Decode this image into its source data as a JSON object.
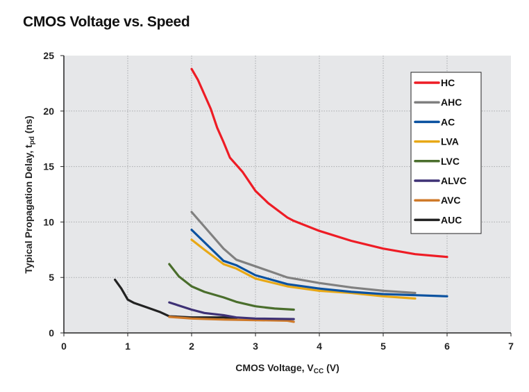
{
  "chart_data": {
    "type": "line",
    "title": "CMOS Voltage vs. Speed",
    "xlabel": "CMOS Voltage, V",
    "xlabel_sub": "CC",
    "xlabel_unit": " (V)",
    "ylabel": "Typical Propagation Delay, t",
    "ylabel_sub": "pd",
    "ylabel_unit": " (ns)",
    "xlim": [
      0,
      7
    ],
    "ylim": [
      0,
      25
    ],
    "xticks": [
      0,
      1,
      2,
      3,
      4,
      5,
      6,
      7
    ],
    "yticks": [
      0,
      5,
      10,
      15,
      20,
      25
    ],
    "grid": true,
    "legend_position": "top-right",
    "series": [
      {
        "name": "HC",
        "color": "#ee1c25",
        "points": [
          [
            2,
            23.8
          ],
          [
            2.1,
            22.8
          ],
          [
            2.2,
            21.5
          ],
          [
            2.3,
            20.2
          ],
          [
            2.4,
            18.5
          ],
          [
            2.5,
            17.2
          ],
          [
            2.6,
            15.8
          ],
          [
            2.8,
            14.5
          ],
          [
            3,
            12.8
          ],
          [
            3.2,
            11.7
          ],
          [
            3.5,
            10.4
          ],
          [
            3.6,
            10.1
          ],
          [
            4,
            9.2
          ],
          [
            4.5,
            8.3
          ],
          [
            5,
            7.6
          ],
          [
            5.5,
            7.1
          ],
          [
            6,
            6.85
          ]
        ]
      },
      {
        "name": "AHC",
        "color": "#808080",
        "points": [
          [
            2,
            10.9
          ],
          [
            2.5,
            7.6
          ],
          [
            2.7,
            6.6
          ],
          [
            3,
            6.0
          ],
          [
            3.3,
            5.4
          ],
          [
            3.5,
            5.0
          ],
          [
            4,
            4.5
          ],
          [
            4.5,
            4.1
          ],
          [
            5,
            3.8
          ],
          [
            5.5,
            3.6
          ]
        ]
      },
      {
        "name": "AC",
        "color": "#0b52a0",
        "points": [
          [
            2,
            9.3
          ],
          [
            2.5,
            6.5
          ],
          [
            2.7,
            6.1
          ],
          [
            3,
            5.2
          ],
          [
            3.5,
            4.4
          ],
          [
            4,
            4.0
          ],
          [
            4.5,
            3.7
          ],
          [
            5,
            3.5
          ],
          [
            5.5,
            3.4
          ],
          [
            6,
            3.3
          ]
        ]
      },
      {
        "name": "LVA",
        "color": "#e8a816",
        "points": [
          [
            2,
            8.4
          ],
          [
            2.2,
            7.5
          ],
          [
            2.5,
            6.2
          ],
          [
            2.7,
            5.8
          ],
          [
            3,
            4.9
          ],
          [
            3.5,
            4.2
          ],
          [
            4,
            3.8
          ],
          [
            4.5,
            3.6
          ],
          [
            5,
            3.3
          ],
          [
            5.5,
            3.1
          ]
        ]
      },
      {
        "name": "LVC",
        "color": "#4a6e2c",
        "points": [
          [
            1.65,
            6.2
          ],
          [
            1.8,
            5.1
          ],
          [
            2,
            4.2
          ],
          [
            2.2,
            3.7
          ],
          [
            2.5,
            3.2
          ],
          [
            2.7,
            2.8
          ],
          [
            3,
            2.4
          ],
          [
            3.3,
            2.2
          ],
          [
            3.6,
            2.1
          ]
        ]
      },
      {
        "name": "ALVC",
        "color": "#3e3175",
        "points": [
          [
            1.65,
            2.75
          ],
          [
            2,
            2.1
          ],
          [
            2.2,
            1.8
          ],
          [
            2.5,
            1.6
          ],
          [
            2.7,
            1.4
          ],
          [
            3,
            1.3
          ],
          [
            3.6,
            1.25
          ]
        ]
      },
      {
        "name": "AVC",
        "color": "#cf7a2a",
        "points": [
          [
            1.65,
            1.45
          ],
          [
            2,
            1.3
          ],
          [
            2.5,
            1.2
          ],
          [
            3,
            1.15
          ],
          [
            3.5,
            1.1
          ],
          [
            3.6,
            1.0
          ]
        ]
      },
      {
        "name": "AUC",
        "color": "#222222",
        "points": [
          [
            0.8,
            4.8
          ],
          [
            0.9,
            4.0
          ],
          [
            1,
            3.0
          ],
          [
            1.1,
            2.7
          ],
          [
            1.3,
            2.3
          ],
          [
            1.5,
            1.9
          ],
          [
            1.65,
            1.5
          ],
          [
            2,
            1.4
          ],
          [
            2.5,
            1.4
          ],
          [
            2.7,
            1.3
          ]
        ]
      }
    ]
  }
}
